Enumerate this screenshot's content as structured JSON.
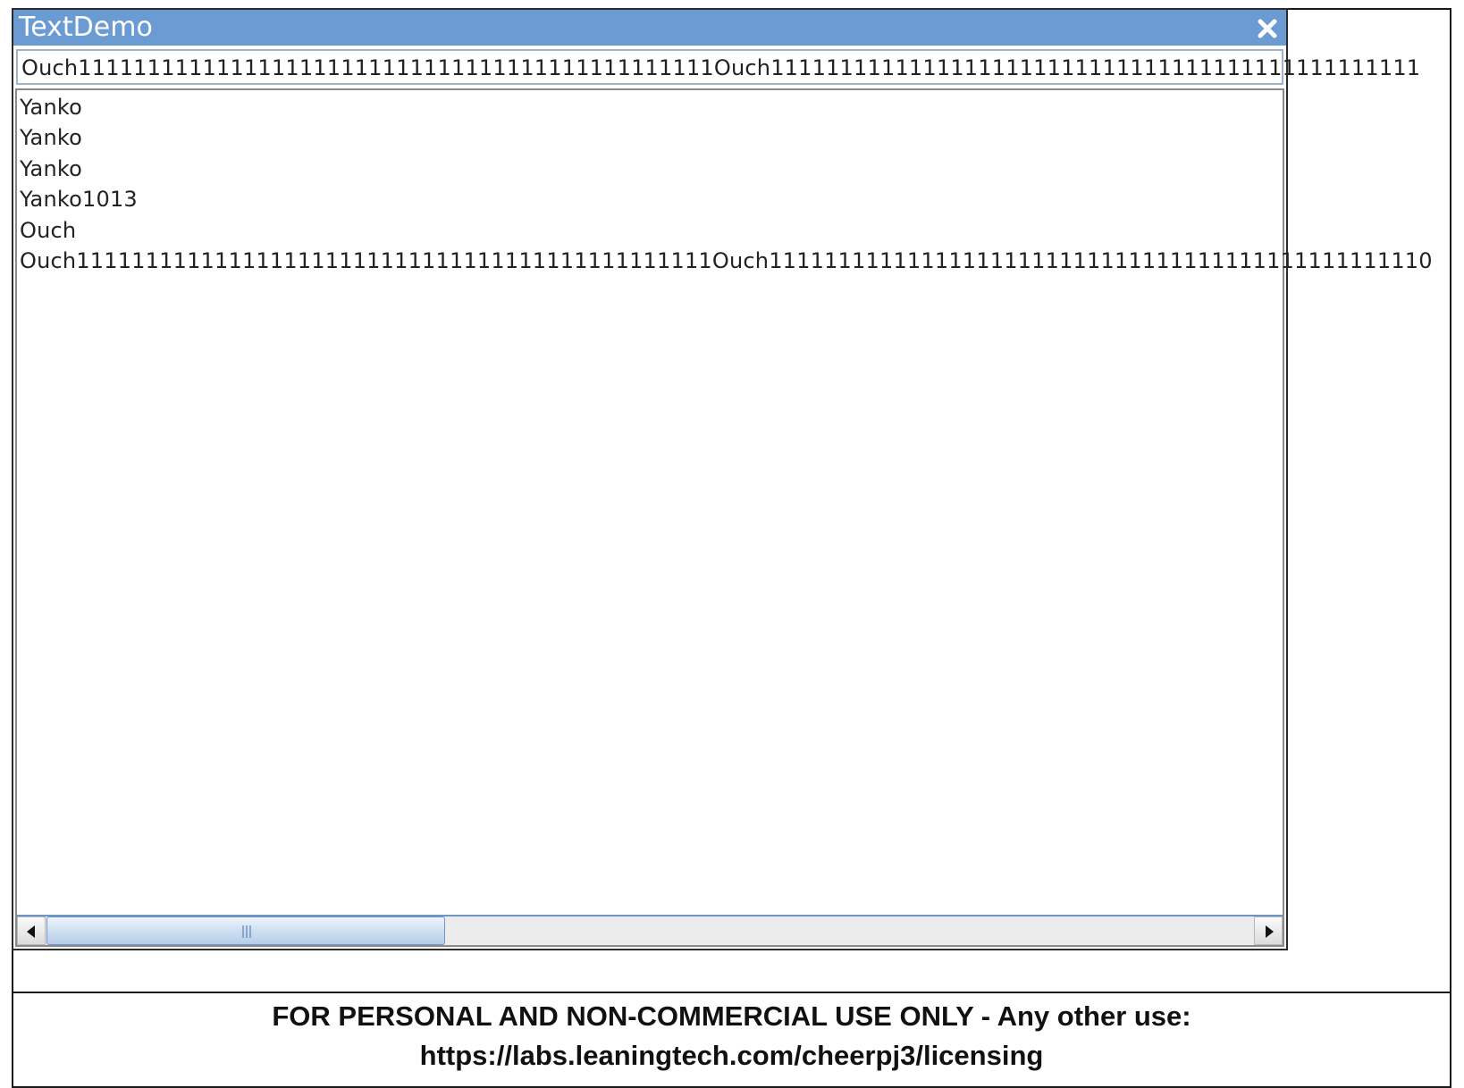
{
  "window": {
    "title": "TextDemo"
  },
  "text_field": {
    "value": "Ouch1111111111111111111111111111111111111111111111Ouch11111111111111111111111111111111111111111111111"
  },
  "text_area": {
    "lines": [
      "Yanko",
      "Yanko",
      "Yanko",
      "Yanko1013",
      "Ouch",
      "Ouch1111111111111111111111111111111111111111111111Ouch111111111111111111111111111111111111111111111110"
    ]
  },
  "scrollbar": {
    "position_fraction": 0.0,
    "visible_fraction": 0.33
  },
  "license": {
    "line1": "FOR PERSONAL AND NON-COMMERCIAL USE ONLY - Any other use:",
    "line2": "https://labs.leaningtech.com/cheerpj3/licensing"
  },
  "colors": {
    "title_bar": "#6b9bd3",
    "scroll_accent": "#6f95c4"
  },
  "icons": {
    "close": "close-icon",
    "scroll_left": "arrow-left-icon",
    "scroll_right": "arrow-right-icon",
    "thumb_grip": "grip-icon"
  }
}
